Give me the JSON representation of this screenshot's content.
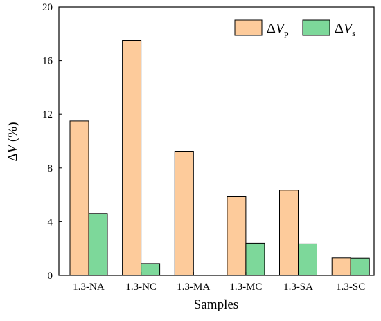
{
  "chart_data": {
    "type": "bar",
    "xlabel": "Samples",
    "ylabel": {
      "delta": "Δ",
      "var": "V",
      "unit": " (%)"
    },
    "ylim": [
      0,
      20
    ],
    "yticks": [
      0,
      4,
      8,
      12,
      16,
      20
    ],
    "categories": [
      "1.3-NA",
      "1.3-NC",
      "1.3-MA",
      "1.3-MC",
      "1.3-SA",
      "1.3-SC"
    ],
    "series": [
      {
        "name": {
          "delta": "Δ",
          "var": "V",
          "sub": "p"
        },
        "color": "#FDCB9B",
        "values": [
          11.5,
          17.5,
          9.25,
          5.85,
          6.35,
          1.3
        ]
      },
      {
        "name": {
          "delta": "Δ",
          "var": "V",
          "sub": "s"
        },
        "color": "#7DD89A",
        "values": [
          4.6,
          0.88,
          0,
          2.4,
          2.35,
          1.28
        ]
      }
    ],
    "grid": false,
    "legend_position": "top-right"
  }
}
